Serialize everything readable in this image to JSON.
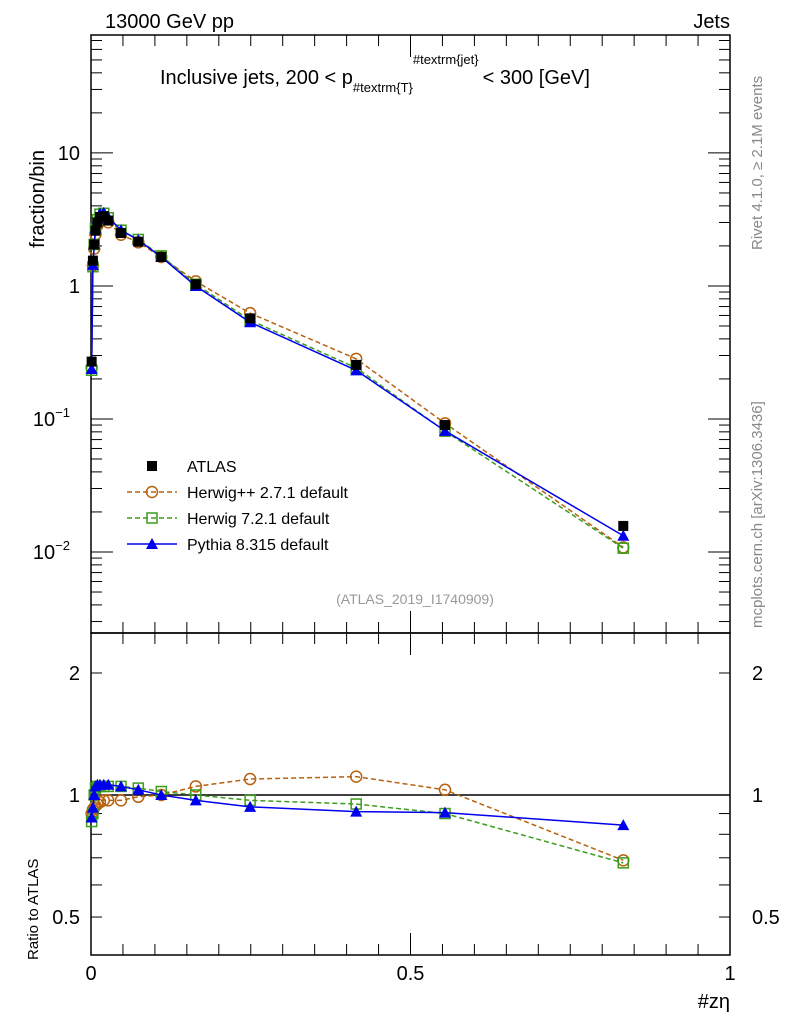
{
  "chart_data": [
    {
      "type": "line",
      "panel": "main",
      "title": "Inclusive jets, 200 < p_{#textrm{T}}^{#textrm{jet}} < 300 [GeV]",
      "title_parts": {
        "pre": "Inclusive jets, 200 < p",
        "sub": "#textrm{T}",
        "sup": "#textrm{jet}",
        "post": "< 300 [GeV]"
      },
      "top_left": "13000 GeV pp",
      "top_right": "Jets",
      "ylabel": "fraction/bin",
      "yscale": "log",
      "ylim": [
        0.00246,
        77
      ],
      "xlim": [
        0,
        1
      ],
      "yticks": [
        {
          "v": 10,
          "label": "10"
        },
        {
          "v": 1,
          "label": "1"
        },
        {
          "v": 0.1,
          "label": "10",
          "exp": "−1"
        },
        {
          "v": 0.01,
          "label": "10",
          "exp": "−2"
        }
      ],
      "watermark": "(ATLAS_2019_I1740909)",
      "legend_placement": "bottom-left",
      "x": [
        0.001,
        0.003,
        0.005,
        0.007,
        0.01,
        0.014,
        0.02,
        0.027,
        0.047,
        0.074,
        0.11,
        0.164,
        0.249,
        0.415,
        0.554,
        0.833
      ],
      "series": [
        {
          "name": "ATLAS",
          "color": "#000000",
          "marker": "square-filled",
          "style": "none",
          "values": [
            0.27,
            1.55,
            2.05,
            2.6,
            3.0,
            3.3,
            3.35,
            3.1,
            2.5,
            2.15,
            1.65,
            1.03,
            0.57,
            0.255,
            0.09,
            0.0157
          ]
        },
        {
          "name": "Herwig++ 2.7.1 default",
          "color": "#b8610f",
          "marker": "circle-open",
          "style": "dashed",
          "ratio": [
            0.9,
            0.92,
            0.93,
            0.94,
            0.95,
            0.96,
            0.97,
            0.97,
            0.97,
            0.99,
            1.0,
            1.05,
            1.095,
            1.11,
            1.03,
            0.69
          ]
        },
        {
          "name": "Herwig 7.2.1 default",
          "color": "#3c9c1c",
          "marker": "square-open",
          "style": "dashed",
          "ratio": [
            0.86,
            0.9,
            1.0,
            1.04,
            1.05,
            1.05,
            1.05,
            1.05,
            1.05,
            1.04,
            1.02,
            1.0,
            0.97,
            0.95,
            0.9,
            0.68
          ]
        },
        {
          "name": "Pythia 8.315 default",
          "color": "#0000ee",
          "marker": "triangle-filled",
          "style": "solid",
          "ratio": [
            0.88,
            0.93,
            1.0,
            1.05,
            1.06,
            1.06,
            1.06,
            1.06,
            1.05,
            1.03,
            1.0,
            0.97,
            0.935,
            0.91,
            0.905,
            0.843
          ]
        }
      ]
    },
    {
      "type": "line",
      "panel": "ratio",
      "ylabel": "Ratio to ATLAS",
      "xlabel": "#zη",
      "yscale": "log",
      "ylim": [
        0.403,
        2.51
      ],
      "xlim": [
        0,
        1
      ],
      "yticks": [
        {
          "v": 2,
          "label": "2"
        },
        {
          "v": 1,
          "label": "1"
        },
        {
          "v": 0.5,
          "label": "0.5"
        }
      ],
      "xticks": [
        {
          "v": 0,
          "label": "0"
        },
        {
          "v": 0.5,
          "label": "0.5"
        },
        {
          "v": 1,
          "label": "1"
        }
      ]
    }
  ],
  "side": {
    "rivet": "Rivet 4.1.0, ≥ 2.1M events",
    "mcplots": "mcplots.cern.ch [arXiv:1306.3436]"
  }
}
